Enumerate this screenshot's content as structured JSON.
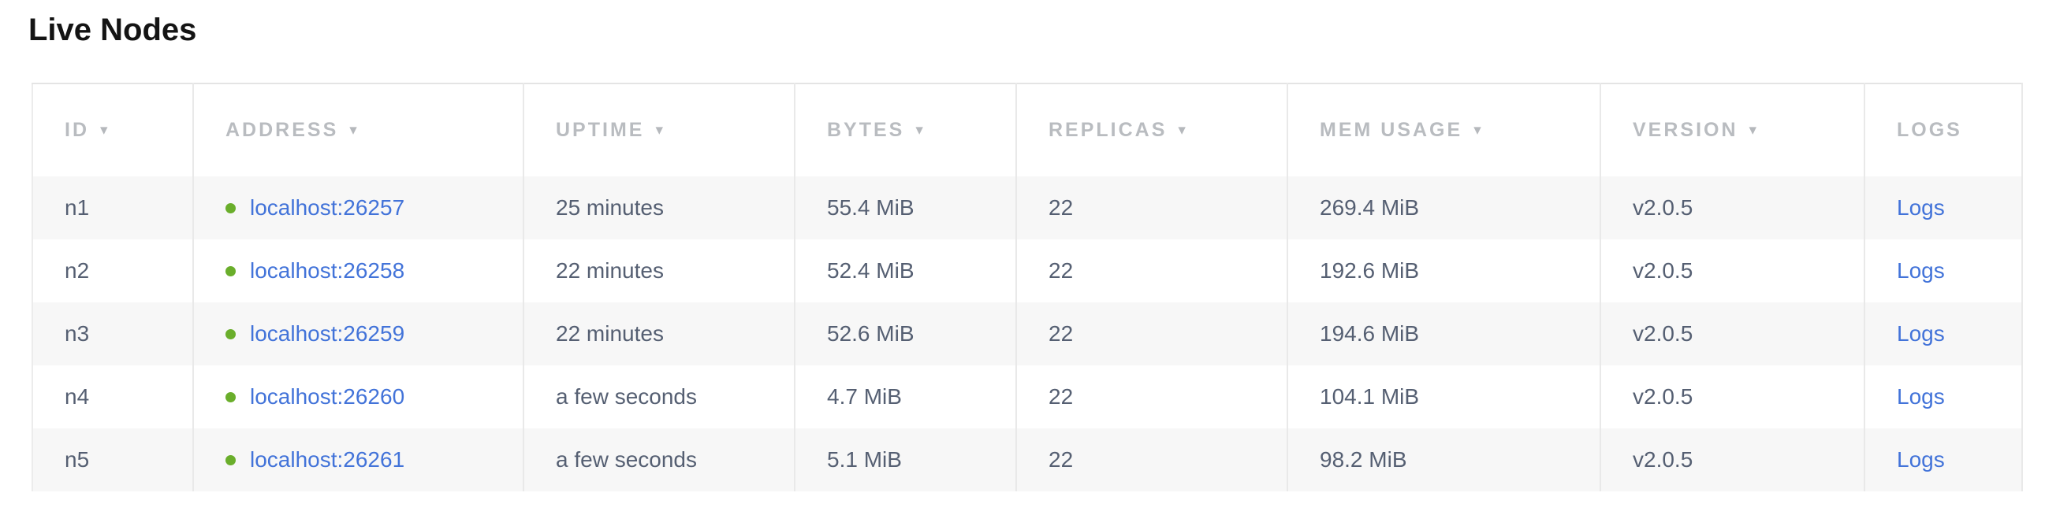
{
  "page": {
    "title": "Live Nodes"
  },
  "table": {
    "sort_arrow": "▾",
    "columns": [
      {
        "label": "ID",
        "sortable": true
      },
      {
        "label": "ADDRESS",
        "sortable": true
      },
      {
        "label": "UPTIME",
        "sortable": true
      },
      {
        "label": "BYTES",
        "sortable": true
      },
      {
        "label": "REPLICAS",
        "sortable": true
      },
      {
        "label": "MEM USAGE",
        "sortable": true
      },
      {
        "label": "VERSION",
        "sortable": true
      },
      {
        "label": "LOGS",
        "sortable": false
      }
    ],
    "rows": [
      {
        "id": "n1",
        "address": "localhost:26257",
        "uptime": "25 minutes",
        "bytes": "55.4 MiB",
        "replicas": "22",
        "mem_usage": "269.4 MiB",
        "version": "v2.0.5",
        "logs_label": "Logs"
      },
      {
        "id": "n2",
        "address": "localhost:26258",
        "uptime": "22 minutes",
        "bytes": "52.4 MiB",
        "replicas": "22",
        "mem_usage": "192.6 MiB",
        "version": "v2.0.5",
        "logs_label": "Logs"
      },
      {
        "id": "n3",
        "address": "localhost:26259",
        "uptime": "22 minutes",
        "bytes": "52.6 MiB",
        "replicas": "22",
        "mem_usage": "194.6 MiB",
        "version": "v2.0.5",
        "logs_label": "Logs"
      },
      {
        "id": "n4",
        "address": "localhost:26260",
        "uptime": "a few seconds",
        "bytes": "4.7 MiB",
        "replicas": "22",
        "mem_usage": "104.1 MiB",
        "version": "v2.0.5",
        "logs_label": "Logs"
      },
      {
        "id": "n5",
        "address": "localhost:26261",
        "uptime": "a few seconds",
        "bytes": "5.1 MiB",
        "replicas": "22",
        "mem_usage": "98.2 MiB",
        "version": "v2.0.5",
        "logs_label": "Logs"
      }
    ]
  },
  "colors": {
    "link_blue": "#4273d9",
    "live_dot_green": "#6aae2b",
    "header_text_gray": "#b9bcc0",
    "body_text_slate": "#555f72",
    "row_alt_bg": "#f7f7f7",
    "border_gray": "#e9e9e9"
  }
}
